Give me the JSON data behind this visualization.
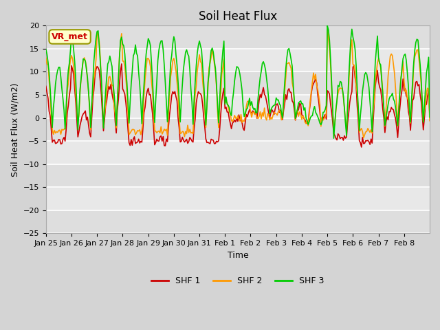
{
  "title": "Soil Heat Flux",
  "ylabel": "Soil Heat Flux (W/m2)",
  "xlabel": "Time",
  "ylim": [
    -25,
    20
  ],
  "yticks": [
    -25,
    -20,
    -15,
    -10,
    -5,
    0,
    5,
    10,
    15,
    20
  ],
  "xtick_labels": [
    "Jan 25",
    "Jan 26",
    "Jan 27",
    "Jan 28",
    "Jan 29",
    "Jan 30",
    "Jan 31",
    "Feb 1",
    "Feb 2",
    "Feb 3",
    "Feb 4",
    "Feb 5",
    "Feb 6",
    "Feb 7",
    "Feb 8"
  ],
  "line_colors": [
    "#cc0000",
    "#ff9900",
    "#00cc00"
  ],
  "line_labels": [
    "SHF 1",
    "SHF 2",
    "SHF 3"
  ],
  "line_width": 1.2,
  "plot_bg": "#e8e8e8",
  "fig_bg": "#d4d4d4",
  "annotation_text": "VR_met",
  "annotation_color": "#cc0000",
  "annotation_bg": "#ffffcc",
  "annotation_border": "#999900",
  "title_fontsize": 12,
  "label_fontsize": 9,
  "tick_fontsize": 8,
  "n_days": 15,
  "hours_per_day": 24,
  "grid_color": "#ffffff",
  "grid_lw": 1.2,
  "shaded_band_color": "#d0d0d0"
}
